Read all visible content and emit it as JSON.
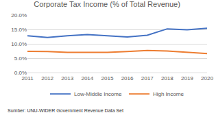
{
  "chart_data": {
    "type": "line",
    "title": "Corporate Tax Income (% of Total Revenue)",
    "annotations": [
      "Sumber: UNU-WIDER Government Revenue Data Set"
    ],
    "categories": [
      "2011",
      "2012",
      "2013",
      "2014",
      "2015",
      "2016",
      "2017",
      "2018",
      "2019",
      "2020"
    ],
    "series": [
      {
        "name": "Low-Middle Income",
        "color": "#4472c4",
        "values": [
          12.8,
          12.2,
          12.8,
          13.2,
          12.8,
          12.4,
          13.0,
          15.2,
          14.9,
          15.4
        ]
      },
      {
        "name": "High Income",
        "color": "#ed7d31",
        "values": [
          7.4,
          7.3,
          7.0,
          7.0,
          7.0,
          7.3,
          7.7,
          7.5,
          7.0,
          6.6
        ]
      }
    ],
    "ylim": [
      0,
      20
    ],
    "yticks": [
      {
        "value": 0,
        "label": "0.0%"
      },
      {
        "value": 5,
        "label": "5.0%"
      },
      {
        "value": 10,
        "label": "10.0%"
      },
      {
        "value": 15,
        "label": "15.0%"
      },
      {
        "value": 20,
        "label": "20.0%"
      }
    ],
    "grid": true,
    "legend": "bottom"
  }
}
